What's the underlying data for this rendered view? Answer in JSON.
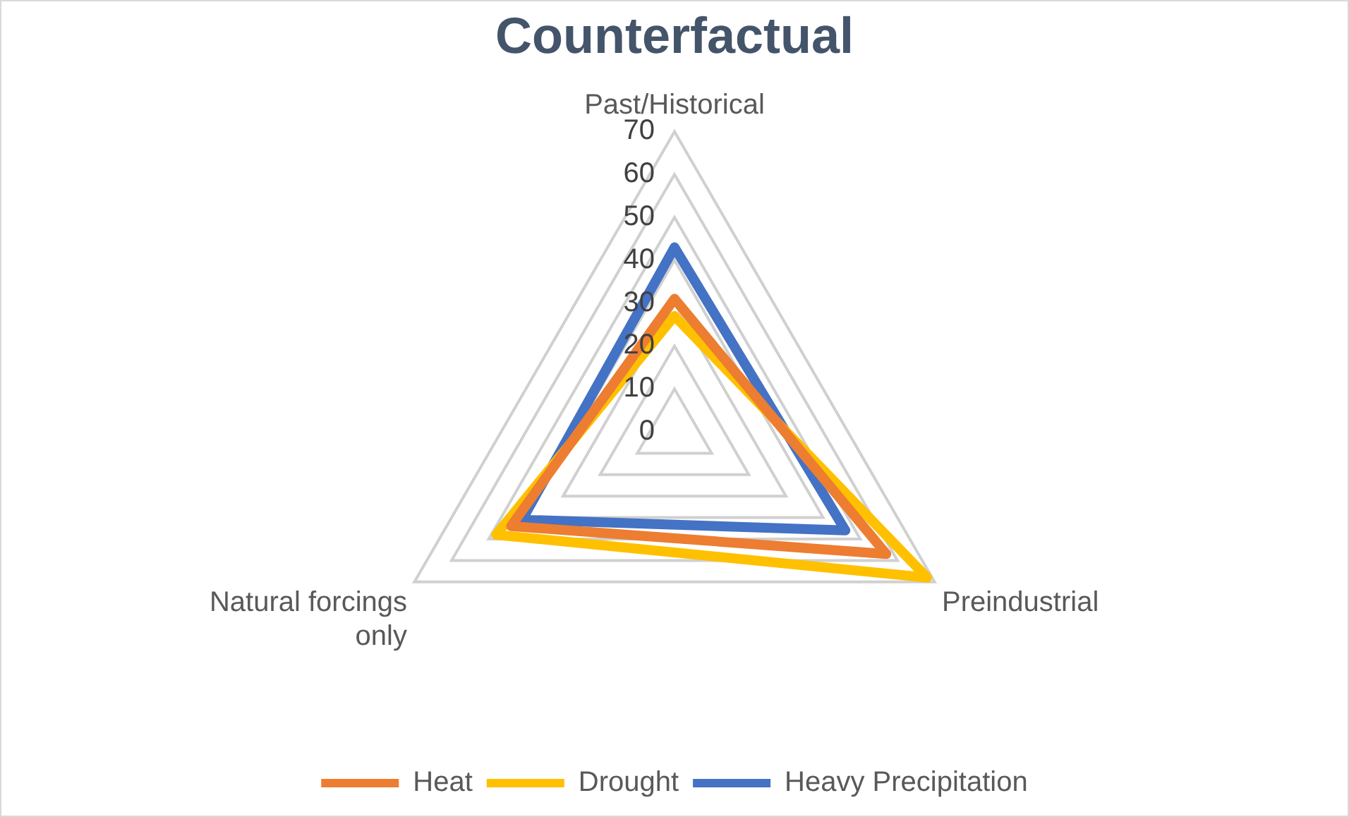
{
  "chart_data": {
    "type": "radar",
    "title": "Counterfactual",
    "categories": [
      "Past/Historical",
      "Preindustrial",
      "Natural forcings only"
    ],
    "series": [
      {
        "name": "Heat",
        "color": "#ed7d31",
        "values": [
          31,
          57,
          44
        ]
      },
      {
        "name": "Drought",
        "color": "#ffc000",
        "values": [
          27,
          68,
          48
        ]
      },
      {
        "name": "Heavy Precipitation",
        "color": "#4472c4",
        "values": [
          43,
          46,
          41
        ]
      }
    ],
    "ylim": [
      0,
      70
    ],
    "yticks": [
      0,
      10,
      20,
      30,
      40,
      50,
      60,
      70
    ],
    "grid": true,
    "legend": "bottom",
    "marker": "none",
    "line_style": "solid"
  }
}
